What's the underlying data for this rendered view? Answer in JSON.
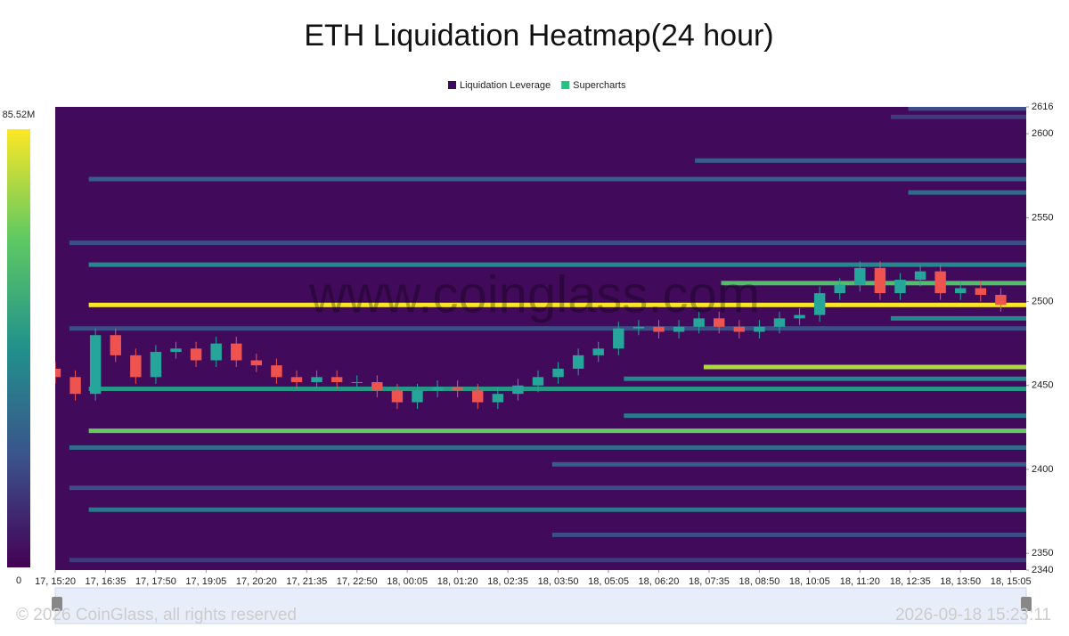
{
  "chart_data": {
    "type": "heatmap",
    "title": "ETH Liquidation Heatmap(24 hour)",
    "watermark": "www.coinglass.com",
    "footer_left": "© 2026 CoinGlass, all rights reserved",
    "footer_right": "2026-09-18 15:23:11",
    "legend": [
      {
        "name": "Liquidation Leverage",
        "color": "#3b0a5b"
      },
      {
        "name": "Supercharts",
        "color": "#26c281"
      }
    ],
    "colormap": [
      "#440154",
      "#3b528b",
      "#21918c",
      "#5ec962",
      "#fde725"
    ],
    "clim": [
      0,
      85520000
    ],
    "cticks": [
      0,
      {
        "value": 85520000,
        "label": "85.52M"
      }
    ],
    "xlim": [
      0,
      1448
    ],
    "xticks": [
      {
        "value": 0,
        "label": "17, 15:20"
      },
      {
        "value": 75,
        "label": "17, 16:35"
      },
      {
        "value": 150,
        "label": "17, 17:50"
      },
      {
        "value": 225,
        "label": "17, 19:05"
      },
      {
        "value": 300,
        "label": "17, 20:20"
      },
      {
        "value": 375,
        "label": "17, 21:35"
      },
      {
        "value": 450,
        "label": "17, 22:50"
      },
      {
        "value": 525,
        "label": "18, 00:05"
      },
      {
        "value": 600,
        "label": "18, 01:20"
      },
      {
        "value": 675,
        "label": "18, 02:35"
      },
      {
        "value": 750,
        "label": "18, 03:50"
      },
      {
        "value": 825,
        "label": "18, 05:05"
      },
      {
        "value": 900,
        "label": "18, 06:20"
      },
      {
        "value": 975,
        "label": "18, 07:35"
      },
      {
        "value": 1050,
        "label": "18, 08:50"
      },
      {
        "value": 1125,
        "label": "18, 10:05"
      },
      {
        "value": 1200,
        "label": "18, 11:20"
      },
      {
        "value": 1275,
        "label": "18, 12:35"
      },
      {
        "value": 1350,
        "label": "18, 13:50"
      },
      {
        "value": 1425,
        "label": "18, 15:05"
      }
    ],
    "ylim": [
      2340,
      2616
    ],
    "yticks": [
      2340,
      2350,
      2400,
      2450,
      2500,
      2550,
      2600,
      2616
    ],
    "bands": {
      "price": [
        2615,
        2610,
        2584,
        2573,
        2565,
        2535,
        2522,
        2511,
        2498,
        2490,
        2484,
        2461,
        2454,
        2448,
        2432,
        2423,
        2413,
        2403,
        2389,
        2376,
        2361,
        2346
      ],
      "start": [
        1272,
        1246,
        954,
        50,
        1272,
        21,
        50,
        993,
        50,
        1246,
        21,
        967,
        848,
        50,
        848,
        50,
        21,
        741,
        21,
        50,
        741,
        21
      ],
      "values": [
        20000000,
        15000000,
        25000000,
        25000000,
        30000000,
        20000000,
        40000000,
        60000000,
        85000000,
        40000000,
        20000000,
        75000000,
        40000000,
        45000000,
        35000000,
        65000000,
        30000000,
        25000000,
        20000000,
        35000000,
        20000000,
        15000000
      ]
    },
    "candles": {
      "x": [
        0,
        30,
        60,
        90,
        120,
        150,
        180,
        210,
        240,
        270,
        300,
        330,
        360,
        390,
        420,
        450,
        480,
        510,
        540,
        570,
        600,
        630,
        660,
        690,
        720,
        750,
        780,
        810,
        840,
        870,
        900,
        930,
        960,
        990,
        1020,
        1050,
        1080,
        1110,
        1140,
        1170,
        1200,
        1230,
        1260,
        1290,
        1320,
        1350,
        1380,
        1410
      ],
      "open": [
        2460,
        2455,
        2445,
        2480,
        2468,
        2455,
        2470,
        2472,
        2465,
        2475,
        2465,
        2462,
        2455,
        2452,
        2455,
        2452,
        2452,
        2447,
        2440,
        2447,
        2449,
        2447,
        2440,
        2445,
        2450,
        2455,
        2460,
        2468,
        2472,
        2484,
        2485,
        2482,
        2485,
        2490,
        2485,
        2482,
        2485,
        2490,
        2492,
        2505,
        2510,
        2520,
        2505,
        2513,
        2518,
        2505,
        2508,
        2504
      ],
      "high": [
        2464,
        2459,
        2484,
        2484,
        2472,
        2474,
        2476,
        2476,
        2479,
        2479,
        2469,
        2466,
        2459,
        2459,
        2459,
        2456,
        2456,
        2451,
        2451,
        2453,
        2453,
        2451,
        2449,
        2454,
        2459,
        2464,
        2472,
        2476,
        2488,
        2489,
        2489,
        2489,
        2494,
        2494,
        2489,
        2489,
        2494,
        2496,
        2509,
        2514,
        2524,
        2524,
        2517,
        2522,
        2522,
        2512,
        2512,
        2508
      ],
      "low": [
        2451,
        2441,
        2441,
        2464,
        2451,
        2451,
        2466,
        2461,
        2461,
        2461,
        2458,
        2451,
        2448,
        2448,
        2448,
        2448,
        2443,
        2436,
        2436,
        2443,
        2443,
        2436,
        2436,
        2441,
        2446,
        2451,
        2456,
        2464,
        2468,
        2480,
        2478,
        2478,
        2481,
        2481,
        2478,
        2478,
        2481,
        2486,
        2488,
        2501,
        2506,
        2501,
        2501,
        2509,
        2501,
        2501,
        2500,
        2494
      ],
      "close": [
        2455,
        2445,
        2480,
        2468,
        2455,
        2470,
        2472,
        2465,
        2475,
        2465,
        2462,
        2455,
        2452,
        2455,
        2452,
        2452,
        2447,
        2440,
        2447,
        2449,
        2447,
        2440,
        2445,
        2450,
        2455,
        2460,
        2468,
        2472,
        2484,
        2485,
        2482,
        2485,
        2490,
        2485,
        2482,
        2485,
        2490,
        2492,
        2505,
        2510,
        2520,
        2505,
        2513,
        2518,
        2505,
        2508,
        2504,
        2498
      ],
      "up_color": "#26a69a",
      "down_color": "#ef5350"
    }
  }
}
